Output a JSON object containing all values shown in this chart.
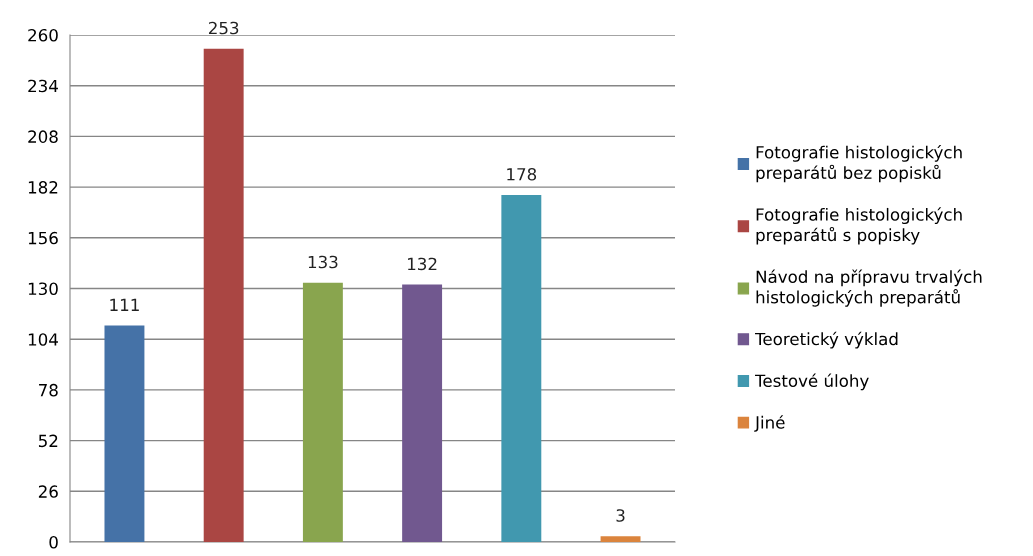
{
  "chart_data": {
    "type": "bar",
    "categories": [
      null
    ],
    "series": [
      {
        "name": "Fotografie histologických\npreparátů bez popisků",
        "color": "#4572a7",
        "values": [
          111
        ]
      },
      {
        "name": "Fotografie histologických\npreparátů s popisky",
        "color": "#aa4643",
        "values": [
          253
        ]
      },
      {
        "name": "Návod na přípravu trvalých\nhistologických preparátů",
        "color": "#89a54e",
        "values": [
          133
        ]
      },
      {
        "name": "Teoretický výklad",
        "color": "#71588f",
        "values": [
          132
        ]
      },
      {
        "name": "Testové úlohy",
        "color": "#4198af",
        "values": [
          178
        ]
      },
      {
        "name": "Jiné",
        "color": "#db843d",
        "values": [
          3
        ]
      }
    ],
    "ylim": [
      0,
      260
    ],
    "yticks": [
      0,
      26,
      52,
      78,
      104,
      130,
      156,
      182,
      208,
      234,
      260
    ],
    "grid": "y",
    "legend": "right",
    "data_labels": true
  }
}
